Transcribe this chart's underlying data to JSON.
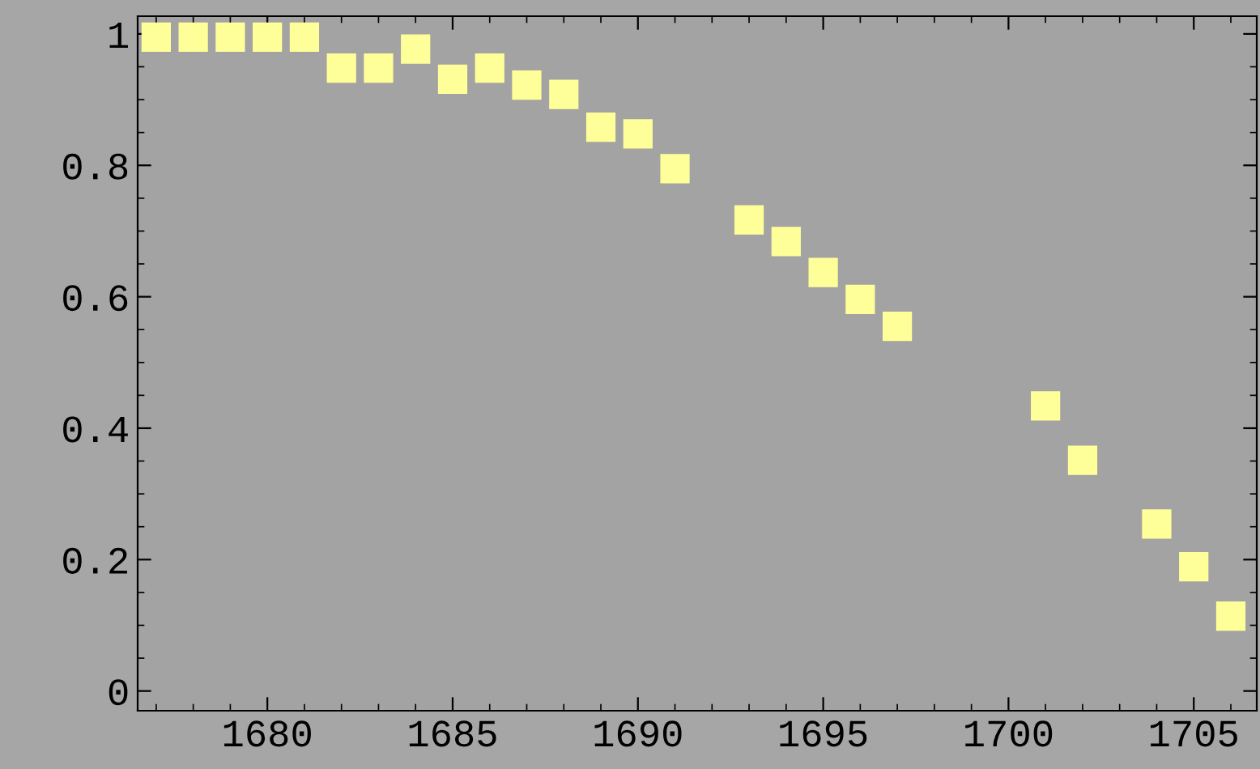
{
  "chart_data": {
    "type": "scatter",
    "marker": "square",
    "grid": false,
    "x": [
      1677,
      1678,
      1679,
      1680,
      1681,
      1682,
      1683,
      1684,
      1685,
      1686,
      1687,
      1688,
      1689,
      1690,
      1691,
      1693,
      1694,
      1695,
      1696,
      1697,
      1701,
      1702,
      1704,
      1705,
      1706
    ],
    "series": [
      {
        "color": "#ffff99",
        "values": [
          0.995,
          0.995,
          0.995,
          0.995,
          0.995,
          0.948,
          0.948,
          0.977,
          0.931,
          0.948,
          0.922,
          0.908,
          0.858,
          0.848,
          0.795,
          0.717,
          0.684,
          0.637,
          0.596,
          0.555,
          0.434,
          0.351,
          0.254,
          0.189,
          0.114
        ]
      }
    ],
    "xlim": [
      1676.5,
      1706.7
    ],
    "ylim": [
      -0.03,
      1.027
    ],
    "xticks": [
      1680,
      1685,
      1690,
      1695,
      1700,
      1705
    ],
    "yticks": [
      0,
      0.2,
      0.4,
      0.6,
      0.8,
      1
    ]
  }
}
